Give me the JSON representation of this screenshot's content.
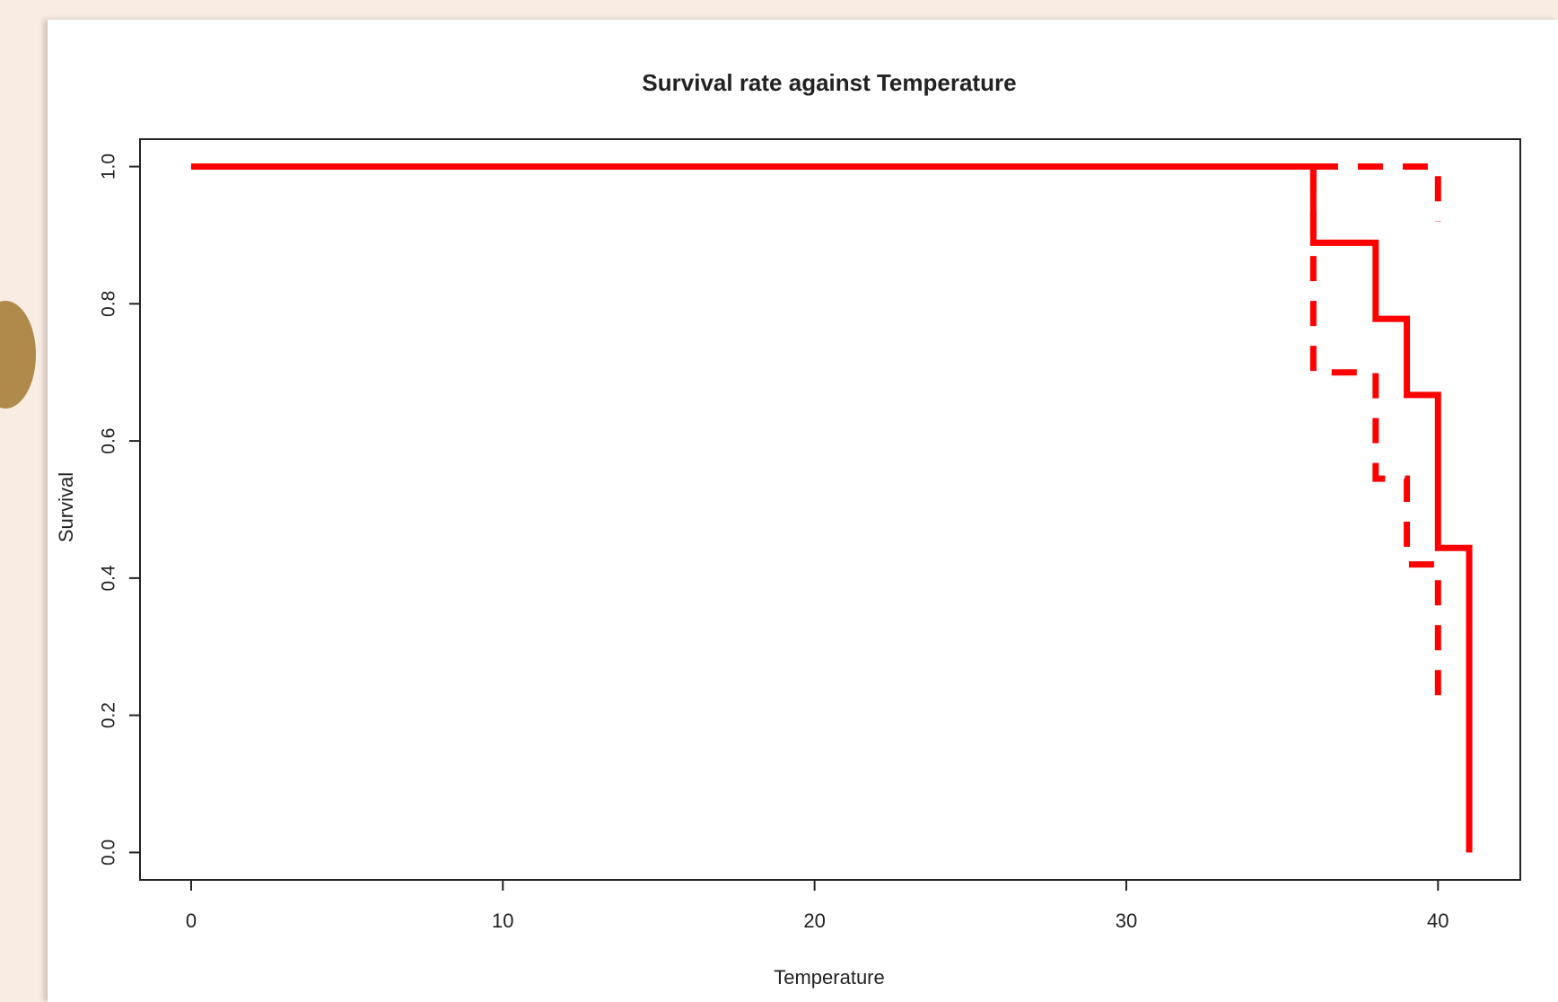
{
  "chart_data": {
    "type": "step",
    "title": "Survival rate against Temperature",
    "x_label": "Temperature",
    "y_label": "Survival",
    "xlim": [
      -1.64,
      42.64
    ],
    "xticks": [
      0,
      10,
      20,
      30,
      40
    ],
    "ylim": [
      -0.04,
      1.04
    ],
    "yticks": [
      {
        "value": 0,
        "label": "0.0"
      },
      {
        "value": 0.2,
        "label": "0.2"
      },
      {
        "value": 0.4,
        "label": "0.4"
      },
      {
        "value": 0.6,
        "label": "0.6"
      },
      {
        "value": 0.8,
        "label": "0.8"
      },
      {
        "value": 1,
        "label": "1.0"
      }
    ],
    "series": [
      {
        "color": "#ff0000",
        "linestyle": "solid",
        "x": [
          0,
          36,
          38,
          39,
          40,
          41
        ],
        "values": [
          1,
          0.889,
          0.778,
          0.667,
          0.444,
          0
        ]
      },
      {
        "color": "#ff0000",
        "linestyle": "dashed",
        "x": [
          0,
          40
        ],
        "values": [
          1,
          0.92
        ]
      },
      {
        "color": "#ff0000",
        "linestyle": "dashed",
        "x": [
          0,
          36,
          38,
          39,
          40
        ],
        "values": [
          1,
          0.7,
          0.545,
          0.42,
          0.21
        ]
      }
    ]
  }
}
